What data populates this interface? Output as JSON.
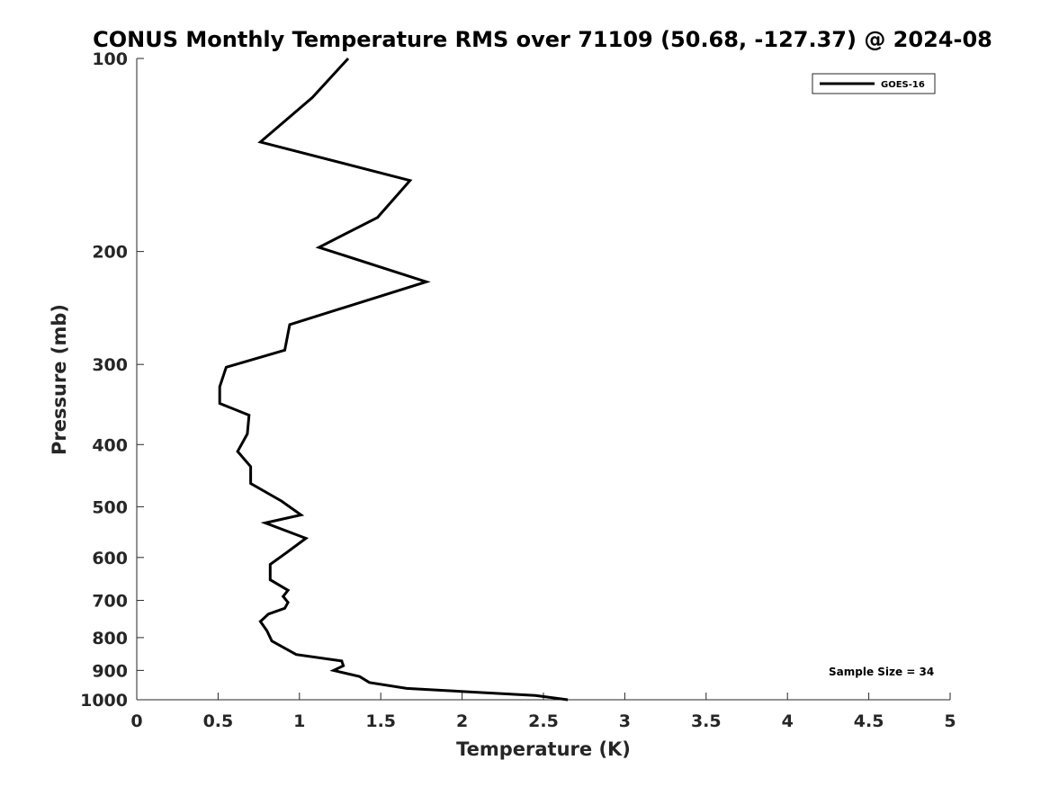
{
  "chart_data": {
    "type": "line",
    "title": "CONUS Monthly Temperature RMS over 71109 (50.68, -127.37) @ 2024-08",
    "xlabel": "Temperature (K)",
    "ylabel": "Pressure (mb)",
    "xlim": [
      0,
      5
    ],
    "ylim": [
      100,
      1000
    ],
    "y_scale": "log",
    "y_reversed": true,
    "x_ticks": [
      "0",
      "0.5",
      "1",
      "1.5",
      "2",
      "2.5",
      "3",
      "3.5",
      "4",
      "4.5",
      "5"
    ],
    "y_ticks": [
      "100",
      "200",
      "300",
      "400",
      "500",
      "600",
      "700",
      "800",
      "900",
      "1000"
    ],
    "legend_position": "top-right",
    "grid": false,
    "annotation": "Sample Size = 34",
    "series": [
      {
        "name": "GOES-16",
        "color": "#000000",
        "x": [
          1.3,
          1.08,
          0.76,
          1.68,
          1.48,
          1.12,
          1.78,
          0.94,
          0.91,
          0.55,
          0.51,
          0.51,
          0.69,
          0.68,
          0.62,
          0.7,
          0.7,
          0.89,
          1.01,
          0.79,
          1.04,
          0.92,
          0.82,
          0.82,
          0.93,
          0.9,
          0.93,
          0.91,
          0.81,
          0.76,
          0.8,
          0.83,
          0.98,
          1.26,
          1.27,
          1.21,
          1.37,
          1.43,
          1.66,
          2.45,
          2.65
        ],
        "y": [
          100,
          115,
          135,
          155,
          177,
          197,
          223,
          260,
          285,
          303,
          325,
          345,
          360,
          385,
          410,
          433,
          460,
          490,
          515,
          530,
          560,
          590,
          615,
          650,
          675,
          690,
          705,
          720,
          735,
          755,
          780,
          810,
          850,
          870,
          885,
          900,
          920,
          940,
          960,
          985,
          1000
        ]
      }
    ]
  }
}
